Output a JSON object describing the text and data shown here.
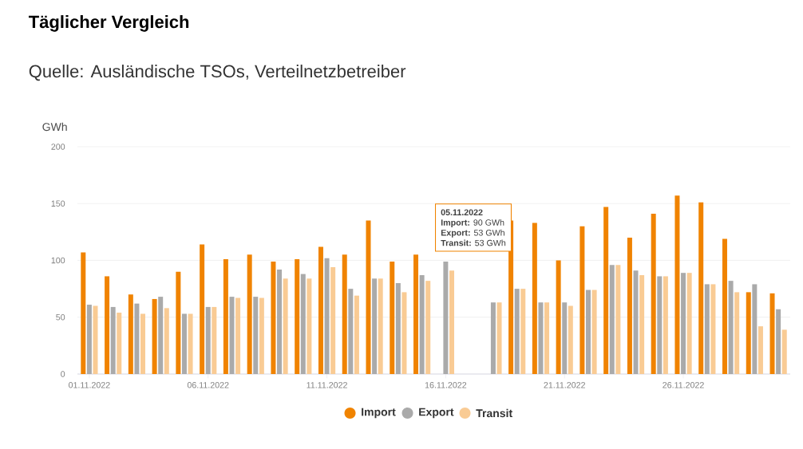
{
  "chart_data": {
    "type": "bar",
    "title": "Täglicher Vergleich",
    "subtitle": "Quelle: Ausländische TSOs, Verteilnetzbetreiber",
    "ylabel": "GWh",
    "categories": [
      "01.11.2022",
      null,
      null,
      null,
      null,
      "06.11.2022",
      null,
      null,
      null,
      null,
      "11.11.2022",
      null,
      null,
      null,
      null,
      "16.11.2022",
      null,
      null,
      null,
      null,
      "21.11.2022",
      null,
      null,
      null,
      null,
      "26.11.2022",
      null,
      null,
      null,
      null
    ],
    "series": [
      {
        "name": "Import",
        "color": "#f08300",
        "values": [
          107,
          86,
          70,
          66,
          90,
          114,
          101,
          105,
          99,
          101,
          112,
          105,
          135,
          99,
          105,
          null,
          null,
          null,
          135,
          133,
          100,
          130,
          147,
          120,
          141,
          157,
          151,
          119,
          72,
          71
        ]
      },
      {
        "name": "Export",
        "color": "#aaaaaa",
        "values": [
          61,
          59,
          62,
          68,
          53,
          59,
          68,
          68,
          92,
          88,
          102,
          75,
          84,
          80,
          87,
          99,
          null,
          63,
          75,
          63,
          63,
          74,
          96,
          91,
          86,
          89,
          79,
          82,
          79,
          57
        ]
      },
      {
        "name": "Transit",
        "color": "#f9cb94",
        "values": [
          60,
          54,
          53,
          58,
          53,
          59,
          67,
          67,
          84,
          84,
          94,
          69,
          84,
          72,
          82,
          91,
          null,
          63,
          75,
          63,
          60,
          74,
          96,
          87,
          86,
          89,
          79,
          72,
          42,
          39
        ]
      }
    ],
    "ylim": [
      0,
      200
    ],
    "yticks": [
      0,
      50,
      100,
      150,
      200
    ],
    "grid": "y",
    "legend": "bottom",
    "annotations": [
      "**05.11.2022**",
      "**Import:** 90 GWh",
      "**Export:** 53 GWh",
      "**Transit:** 53 GWh"
    ]
  }
}
